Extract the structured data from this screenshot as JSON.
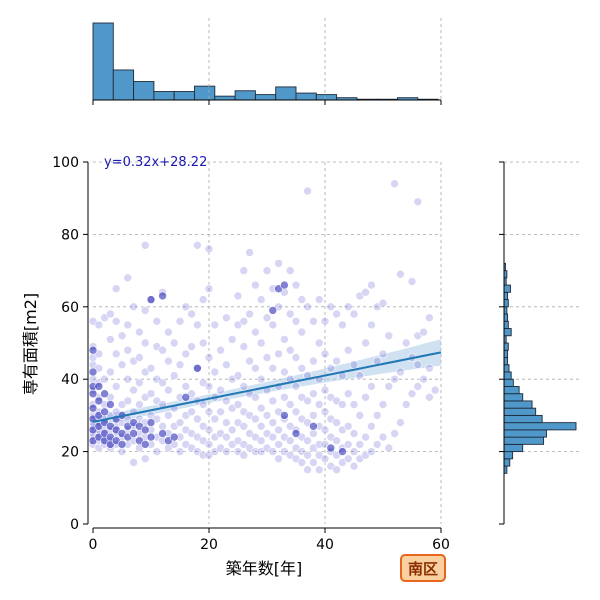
{
  "colors": {
    "hist_fill": "#4f98c9",
    "hist_edge": "#1f2b3a",
    "point_fill": "#6a6ad8",
    "point_dark": "#1a1ab0",
    "reg_line": "#1f77b4",
    "reg_band": "#a9c9e6",
    "grid": "#aaaaaa",
    "badge_fill": "#fbd0a0",
    "badge_edge": "#e8651c",
    "badge_text": "#8a2e00"
  },
  "chart_data": {
    "type": "scatter",
    "xlabel": "築年数[年]",
    "ylabel": "専有面積[m2]",
    "xlim": [
      0,
      60
    ],
    "ylim": [
      0,
      100
    ],
    "xticks": [
      0,
      20,
      40,
      60
    ],
    "yticks": [
      0,
      20,
      40,
      60,
      80,
      100
    ],
    "grid": true,
    "annotation": "y=0.32x+28.22",
    "badge": "南区",
    "regression": {
      "slope": 0.32,
      "intercept": 28.22,
      "x_range": [
        0,
        60
      ]
    },
    "marginal_x_hist": {
      "bin_edges": [
        0,
        3.5,
        7,
        10.5,
        14,
        17.5,
        21,
        24.5,
        28,
        31.5,
        35,
        38.5,
        42,
        45.5,
        49,
        52.5,
        56,
        59.5
      ],
      "relative_heights": [
        1.0,
        0.39,
        0.24,
        0.11,
        0.11,
        0.18,
        0.05,
        0.12,
        0.07,
        0.17,
        0.09,
        0.07,
        0.03,
        0.01,
        0.01,
        0.03,
        0.01
      ]
    },
    "marginal_y_hist": {
      "bin_edges": [
        14,
        16,
        18,
        20,
        22,
        24,
        26,
        28,
        30,
        32,
        34,
        36,
        38,
        40,
        42,
        44,
        46,
        48,
        50,
        52,
        54,
        56,
        58,
        60,
        62,
        64,
        66,
        68,
        70,
        72
      ],
      "relative_heights": [
        0.04,
        0.08,
        0.12,
        0.26,
        0.55,
        0.59,
        1.0,
        0.53,
        0.44,
        0.39,
        0.26,
        0.21,
        0.13,
        0.1,
        0.07,
        0.05,
        0.05,
        0.06,
        0.03,
        0.1,
        0.06,
        0.05,
        0.04,
        0.06,
        0.05,
        0.09,
        0.03,
        0.04,
        0.02
      ]
    },
    "points": [
      [
        0,
        22
      ],
      [
        0,
        24
      ],
      [
        0,
        25
      ],
      [
        0,
        27
      ],
      [
        0,
        28
      ],
      [
        0,
        30
      ],
      [
        0,
        33
      ],
      [
        0,
        37
      ],
      [
        0,
        40
      ],
      [
        0,
        44
      ],
      [
        0,
        46
      ],
      [
        0,
        49
      ],
      [
        0,
        56
      ],
      [
        1,
        21
      ],
      [
        1,
        23
      ],
      [
        1,
        25
      ],
      [
        1,
        26
      ],
      [
        1,
        28
      ],
      [
        1,
        31
      ],
      [
        1,
        35
      ],
      [
        1,
        39
      ],
      [
        1,
        43
      ],
      [
        1,
        47
      ],
      [
        1,
        55
      ],
      [
        2,
        22
      ],
      [
        2,
        24
      ],
      [
        2,
        26
      ],
      [
        2,
        29
      ],
      [
        2,
        33
      ],
      [
        2,
        40
      ],
      [
        2,
        57
      ],
      [
        3,
        21
      ],
      [
        3,
        23
      ],
      [
        3,
        26
      ],
      [
        3,
        30
      ],
      [
        3,
        35
      ],
      [
        3,
        42
      ],
      [
        3,
        51
      ],
      [
        3,
        58
      ],
      [
        4,
        22
      ],
      [
        4,
        25
      ],
      [
        4,
        27
      ],
      [
        4,
        31
      ],
      [
        4,
        38
      ],
      [
        4,
        47
      ],
      [
        4,
        56
      ],
      [
        4,
        65
      ],
      [
        5,
        20
      ],
      [
        5,
        24
      ],
      [
        5,
        28
      ],
      [
        5,
        33
      ],
      [
        5,
        44
      ],
      [
        5,
        52
      ],
      [
        6,
        22
      ],
      [
        6,
        26
      ],
      [
        6,
        29
      ],
      [
        6,
        34
      ],
      [
        6,
        40
      ],
      [
        6,
        48
      ],
      [
        6,
        55
      ],
      [
        6,
        68
      ],
      [
        7,
        17
      ],
      [
        7,
        23
      ],
      [
        7,
        27
      ],
      [
        7,
        31
      ],
      [
        7,
        37
      ],
      [
        7,
        45
      ],
      [
        7,
        60
      ],
      [
        8,
        21
      ],
      [
        8,
        25
      ],
      [
        8,
        29
      ],
      [
        8,
        33
      ],
      [
        8,
        39
      ],
      [
        8,
        46
      ],
      [
        8,
        53
      ],
      [
        9,
        18
      ],
      [
        9,
        24
      ],
      [
        9,
        28
      ],
      [
        9,
        35
      ],
      [
        9,
        42
      ],
      [
        9,
        50
      ],
      [
        9,
        59
      ],
      [
        9,
        77
      ],
      [
        10,
        22
      ],
      [
        10,
        26
      ],
      [
        10,
        30
      ],
      [
        10,
        36
      ],
      [
        10,
        43
      ],
      [
        10,
        62
      ],
      [
        11,
        20
      ],
      [
        11,
        24
      ],
      [
        11,
        29
      ],
      [
        11,
        34
      ],
      [
        11,
        40
      ],
      [
        11,
        49
      ],
      [
        11,
        56
      ],
      [
        12,
        23
      ],
      [
        12,
        27
      ],
      [
        12,
        33
      ],
      [
        12,
        39
      ],
      [
        12,
        48
      ],
      [
        12,
        64
      ],
      [
        13,
        21
      ],
      [
        13,
        25
      ],
      [
        13,
        30
      ],
      [
        13,
        37
      ],
      [
        13,
        45
      ],
      [
        13,
        53
      ],
      [
        14,
        22
      ],
      [
        14,
        27
      ],
      [
        14,
        32
      ],
      [
        14,
        41
      ],
      [
        14,
        50
      ],
      [
        15,
        20
      ],
      [
        15,
        24
      ],
      [
        15,
        28
      ],
      [
        15,
        35
      ],
      [
        15,
        44
      ],
      [
        15,
        56
      ],
      [
        16,
        22
      ],
      [
        16,
        26
      ],
      [
        16,
        30
      ],
      [
        16,
        38
      ],
      [
        16,
        47
      ],
      [
        16,
        60
      ],
      [
        17,
        21
      ],
      [
        17,
        25
      ],
      [
        17,
        31
      ],
      [
        17,
        36
      ],
      [
        17,
        49
      ],
      [
        17,
        58
      ],
      [
        18,
        20
      ],
      [
        18,
        24
      ],
      [
        18,
        29
      ],
      [
        18,
        34
      ],
      [
        18,
        43
      ],
      [
        18,
        55
      ],
      [
        18,
        77
      ],
      [
        19,
        19
      ],
      [
        19,
        23
      ],
      [
        19,
        27
      ],
      [
        19,
        33
      ],
      [
        19,
        39
      ],
      [
        19,
        50
      ],
      [
        19,
        62
      ],
      [
        20,
        19
      ],
      [
        20,
        22
      ],
      [
        20,
        26
      ],
      [
        20,
        31
      ],
      [
        20,
        38
      ],
      [
        20,
        46
      ],
      [
        20,
        65
      ],
      [
        20,
        76
      ],
      [
        21,
        20
      ],
      [
        21,
        24
      ],
      [
        21,
        29
      ],
      [
        21,
        35
      ],
      [
        21,
        42
      ],
      [
        21,
        55
      ],
      [
        22,
        21
      ],
      [
        22,
        25
      ],
      [
        22,
        31
      ],
      [
        22,
        37
      ],
      [
        22,
        48
      ],
      [
        23,
        20
      ],
      [
        23,
        24
      ],
      [
        23,
        28
      ],
      [
        23,
        34
      ],
      [
        23,
        44
      ],
      [
        23,
        57
      ],
      [
        24,
        22
      ],
      [
        24,
        26
      ],
      [
        24,
        32
      ],
      [
        24,
        40
      ],
      [
        24,
        51
      ],
      [
        25,
        20
      ],
      [
        25,
        23
      ],
      [
        25,
        28
      ],
      [
        25,
        33
      ],
      [
        25,
        41
      ],
      [
        25,
        55
      ],
      [
        25,
        63
      ],
      [
        26,
        19
      ],
      [
        26,
        22
      ],
      [
        26,
        27
      ],
      [
        26,
        31
      ],
      [
        26,
        38
      ],
      [
        26,
        49
      ],
      [
        26,
        56
      ],
      [
        26,
        70
      ],
      [
        27,
        21
      ],
      [
        27,
        25
      ],
      [
        27,
        30
      ],
      [
        27,
        36
      ],
      [
        27,
        45
      ],
      [
        27,
        58
      ],
      [
        27,
        75
      ],
      [
        28,
        20
      ],
      [
        28,
        24
      ],
      [
        28,
        29
      ],
      [
        28,
        35
      ],
      [
        28,
        43
      ],
      [
        28,
        53
      ],
      [
        28,
        66
      ],
      [
        29,
        20
      ],
      [
        29,
        23
      ],
      [
        29,
        27
      ],
      [
        29,
        32
      ],
      [
        29,
        40
      ],
      [
        29,
        50
      ],
      [
        29,
        62
      ],
      [
        30,
        21
      ],
      [
        30,
        25
      ],
      [
        30,
        30
      ],
      [
        30,
        37
      ],
      [
        30,
        46
      ],
      [
        30,
        57
      ],
      [
        30,
        70
      ],
      [
        31,
        20
      ],
      [
        31,
        24
      ],
      [
        31,
        28
      ],
      [
        31,
        34
      ],
      [
        31,
        43
      ],
      [
        31,
        55
      ],
      [
        31,
        65
      ],
      [
        32,
        18
      ],
      [
        32,
        22
      ],
      [
        32,
        26
      ],
      [
        32,
        31
      ],
      [
        32,
        38
      ],
      [
        32,
        47
      ],
      [
        32,
        60
      ],
      [
        32,
        72
      ],
      [
        33,
        20
      ],
      [
        33,
        24
      ],
      [
        33,
        29
      ],
      [
        33,
        35
      ],
      [
        33,
        42
      ],
      [
        33,
        51
      ],
      [
        33,
        64
      ],
      [
        34,
        19
      ],
      [
        34,
        23
      ],
      [
        34,
        27
      ],
      [
        34,
        33
      ],
      [
        34,
        40
      ],
      [
        34,
        48
      ],
      [
        34,
        58
      ],
      [
        34,
        70
      ],
      [
        35,
        18
      ],
      [
        35,
        21
      ],
      [
        35,
        26
      ],
      [
        35,
        31
      ],
      [
        35,
        38
      ],
      [
        35,
        46
      ],
      [
        35,
        56
      ],
      [
        35,
        66
      ],
      [
        36,
        17
      ],
      [
        36,
        20
      ],
      [
        36,
        24
      ],
      [
        36,
        29
      ],
      [
        36,
        35
      ],
      [
        36,
        43
      ],
      [
        36,
        53
      ],
      [
        36,
        62
      ],
      [
        37,
        15
      ],
      [
        37,
        19
      ],
      [
        37,
        23
      ],
      [
        37,
        28
      ],
      [
        37,
        34
      ],
      [
        37,
        41
      ],
      [
        37,
        60
      ],
      [
        37,
        92
      ],
      [
        38,
        17
      ],
      [
        38,
        21
      ],
      [
        38,
        25
      ],
      [
        38,
        30
      ],
      [
        38,
        36
      ],
      [
        38,
        45
      ],
      [
        38,
        56
      ],
      [
        39,
        15
      ],
      [
        39,
        19
      ],
      [
        39,
        22
      ],
      [
        39,
        27
      ],
      [
        39,
        33
      ],
      [
        39,
        40
      ],
      [
        39,
        50
      ],
      [
        39,
        62
      ],
      [
        40,
        18
      ],
      [
        40,
        22
      ],
      [
        40,
        26
      ],
      [
        40,
        31
      ],
      [
        40,
        37
      ],
      [
        40,
        47
      ],
      [
        40,
        56
      ],
      [
        41,
        16
      ],
      [
        41,
        20
      ],
      [
        41,
        24
      ],
      [
        41,
        29
      ],
      [
        41,
        35
      ],
      [
        41,
        43
      ],
      [
        41,
        60
      ],
      [
        42,
        15
      ],
      [
        42,
        19
      ],
      [
        42,
        23
      ],
      [
        42,
        28
      ],
      [
        42,
        34
      ],
      [
        42,
        45
      ],
      [
        42,
        58
      ],
      [
        43,
        17
      ],
      [
        43,
        21
      ],
      [
        43,
        26
      ],
      [
        43,
        33
      ],
      [
        43,
        41
      ],
      [
        43,
        55
      ],
      [
        44,
        18
      ],
      [
        44,
        22
      ],
      [
        44,
        27
      ],
      [
        44,
        36
      ],
      [
        44,
        48
      ],
      [
        44,
        60
      ],
      [
        45,
        16
      ],
      [
        45,
        20
      ],
      [
        45,
        25
      ],
      [
        45,
        33
      ],
      [
        45,
        44
      ],
      [
        45,
        58
      ],
      [
        46,
        18
      ],
      [
        46,
        22
      ],
      [
        46,
        30
      ],
      [
        46,
        41
      ],
      [
        46,
        63
      ],
      [
        47,
        19
      ],
      [
        47,
        24
      ],
      [
        47,
        35
      ],
      [
        47,
        50
      ],
      [
        47,
        64
      ],
      [
        48,
        20
      ],
      [
        48,
        27
      ],
      [
        48,
        38
      ],
      [
        48,
        55
      ],
      [
        48,
        66
      ],
      [
        49,
        22
      ],
      [
        49,
        30
      ],
      [
        49,
        45
      ],
      [
        49,
        60
      ],
      [
        50,
        24
      ],
      [
        50,
        33
      ],
      [
        50,
        47
      ],
      [
        50,
        61
      ],
      [
        51,
        21
      ],
      [
        51,
        38
      ],
      [
        51,
        52
      ],
      [
        52,
        25
      ],
      [
        52,
        40
      ],
      [
        52,
        94
      ],
      [
        53,
        28
      ],
      [
        53,
        42
      ],
      [
        53,
        69
      ],
      [
        54,
        33
      ],
      [
        54,
        50
      ],
      [
        55,
        36
      ],
      [
        55,
        46
      ],
      [
        55,
        67
      ],
      [
        56,
        38
      ],
      [
        56,
        44
      ],
      [
        56,
        52
      ],
      [
        56,
        89
      ],
      [
        57,
        40
      ],
      [
        57,
        53
      ],
      [
        58,
        35
      ],
      [
        58,
        43
      ],
      [
        58,
        57
      ],
      [
        59,
        37
      ]
    ],
    "dark_points": [
      [
        0,
        23
      ],
      [
        0,
        26
      ],
      [
        0,
        29
      ],
      [
        0,
        32
      ],
      [
        0,
        36
      ],
      [
        0,
        38
      ],
      [
        0,
        42
      ],
      [
        0,
        48
      ],
      [
        1,
        24
      ],
      [
        1,
        27
      ],
      [
        1,
        30
      ],
      [
        1,
        34
      ],
      [
        1,
        38
      ],
      [
        2,
        23
      ],
      [
        2,
        25
      ],
      [
        2,
        28
      ],
      [
        2,
        31
      ],
      [
        2,
        36
      ],
      [
        3,
        22
      ],
      [
        3,
        24
      ],
      [
        3,
        27
      ],
      [
        3,
        33
      ],
      [
        4,
        23
      ],
      [
        4,
        26
      ],
      [
        4,
        29
      ],
      [
        5,
        22
      ],
      [
        5,
        25
      ],
      [
        5,
        30
      ],
      [
        6,
        24
      ],
      [
        6,
        27
      ],
      [
        7,
        25
      ],
      [
        7,
        28
      ],
      [
        8,
        23
      ],
      [
        8,
        27
      ],
      [
        9,
        22
      ],
      [
        9,
        26
      ],
      [
        10,
        24
      ],
      [
        10,
        28
      ],
      [
        10,
        62
      ],
      [
        12,
        25
      ],
      [
        12,
        63
      ],
      [
        13,
        23
      ],
      [
        14,
        24
      ],
      [
        16,
        35
      ],
      [
        18,
        43
      ],
      [
        31,
        59
      ],
      [
        32,
        65
      ],
      [
        33,
        66
      ],
      [
        33,
        30
      ],
      [
        35,
        25
      ],
      [
        38,
        27
      ],
      [
        41,
        21
      ],
      [
        43,
        20
      ]
    ]
  }
}
